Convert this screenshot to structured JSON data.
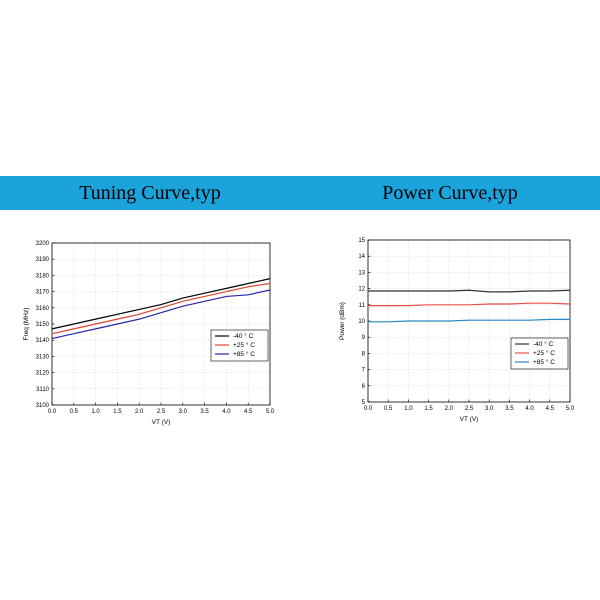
{
  "banner": {
    "color": "#1ba3db",
    "left_title": "Tuning Curve,typ",
    "right_title": "Power Curve,typ"
  },
  "chart_data": [
    {
      "type": "line",
      "title": "Tuning Curve,typ",
      "xlabel": "VT (V)",
      "ylabel": "Freq (MHz)",
      "xlim": [
        0.0,
        5.0
      ],
      "ylim": [
        3100,
        3200
      ],
      "x_ticks": [
        "0.0",
        "0.5",
        "1.0",
        "1.5",
        "2.0",
        "2.5",
        "3.0",
        "3.5",
        "4.0",
        "4.5",
        "5.0"
      ],
      "y_ticks": [
        "3100",
        "3110",
        "3120",
        "3130",
        "3140",
        "3150",
        "3160",
        "3170",
        "3180",
        "3190",
        "3200"
      ],
      "grid": true,
      "legend_position": "center-right",
      "x": [
        0.0,
        0.5,
        1.0,
        1.5,
        2.0,
        2.5,
        3.0,
        3.5,
        4.0,
        4.5,
        5.0
      ],
      "series": [
        {
          "name": "-40 ° C",
          "color": "#000000",
          "values": [
            3147,
            3150,
            3153,
            3156,
            3159,
            3162,
            3166,
            3169,
            3172,
            3175,
            3178
          ]
        },
        {
          "name": "+25 ° C",
          "color": "#e0452f",
          "values": [
            3144,
            3147,
            3150,
            3153,
            3156,
            3160,
            3164,
            3167,
            3170,
            3173,
            3175
          ]
        },
        {
          "name": "+85 ° C",
          "color": "#2626a8",
          "values": [
            3141,
            3144,
            3147,
            3150,
            3153,
            3157,
            3161,
            3164,
            3167,
            3168,
            3171
          ]
        }
      ]
    },
    {
      "type": "line",
      "title": "Power Curve,typ",
      "xlabel": "VT (V)",
      "ylabel": "Power (dBm)",
      "xlim": [
        0.0,
        5.0
      ],
      "ylim": [
        5,
        15
      ],
      "x_ticks": [
        "0.0",
        "0.5",
        "1.0",
        "1.5",
        "2.0",
        "2.5",
        "3.0",
        "3.5",
        "4.0",
        "4.5",
        "5.0"
      ],
      "y_ticks": [
        "5",
        "6",
        "7",
        "8",
        "9",
        "10",
        "11",
        "12",
        "13",
        "14",
        "15"
      ],
      "grid": true,
      "legend_position": "center-right",
      "x": [
        0.0,
        0.5,
        1.0,
        1.5,
        2.0,
        2.5,
        3.0,
        3.5,
        4.0,
        4.5,
        5.0
      ],
      "series": [
        {
          "name": "-40 ° C",
          "color": "#333333",
          "values": [
            11.85,
            11.85,
            11.85,
            11.85,
            11.85,
            11.9,
            11.8,
            11.8,
            11.85,
            11.85,
            11.9
          ]
        },
        {
          "name": "+25 ° C",
          "color": "#e8504a",
          "values": [
            10.95,
            10.95,
            10.95,
            11.0,
            11.0,
            11.0,
            11.05,
            11.05,
            11.1,
            11.1,
            11.05
          ]
        },
        {
          "name": "+85 ° C",
          "color": "#2e86c8",
          "values": [
            9.95,
            9.95,
            10.0,
            10.0,
            10.0,
            10.05,
            10.05,
            10.05,
            10.05,
            10.1,
            10.1
          ]
        }
      ]
    }
  ]
}
